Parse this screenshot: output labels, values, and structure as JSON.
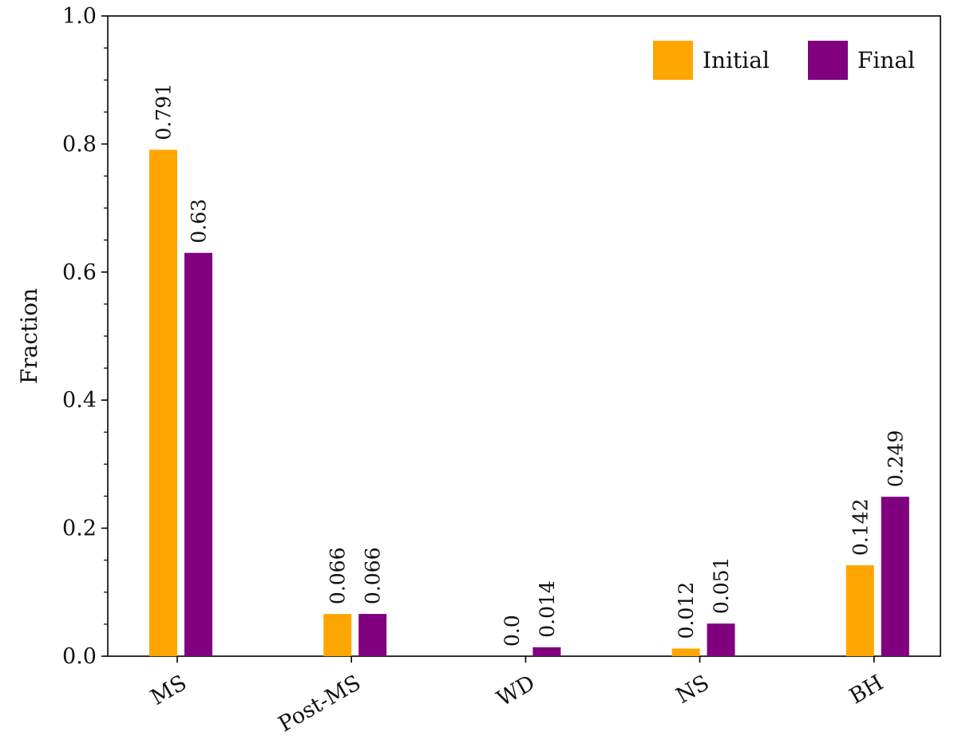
{
  "chart_data": {
    "type": "bar",
    "categories": [
      "MS",
      "Post-MS",
      "WD",
      "NS",
      "BH"
    ],
    "series": [
      {
        "name": "Initial",
        "color": "#FFA500",
        "values": [
          0.791,
          0.066,
          0.0,
          0.012,
          0.142
        ],
        "labels": [
          "0.791",
          "0.066",
          "0.0",
          "0.012",
          "0.142"
        ]
      },
      {
        "name": "Final",
        "color": "#800080",
        "values": [
          0.63,
          0.066,
          0.014,
          0.051,
          0.249
        ],
        "labels": [
          "0.63",
          "0.066",
          "0.014",
          "0.051",
          "0.249"
        ]
      }
    ],
    "ylabel": "Fraction",
    "xlabel": "",
    "ylim": [
      0,
      1.0
    ],
    "yticks": [
      "0.0",
      "0.2",
      "0.4",
      "0.6",
      "0.8",
      "1.0"
    ],
    "legend_position": "top-right",
    "grid": false
  }
}
